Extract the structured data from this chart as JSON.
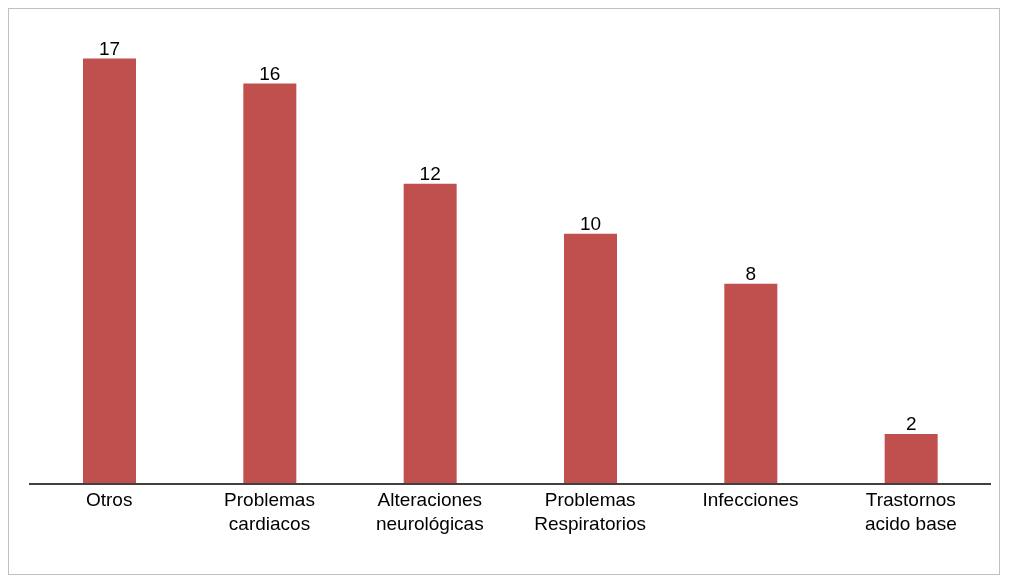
{
  "chart_data": {
    "type": "bar",
    "categories": [
      "Otros",
      "Problemas cardiacos",
      "Alteraciones neurológicas",
      "Problemas Respiratorios",
      "Infecciones",
      "Trastornos acido base"
    ],
    "values": [
      17,
      16,
      12,
      10,
      8,
      2
    ],
    "color": "#c0504d",
    "data_labels": true,
    "grid": false,
    "legend": false
  }
}
